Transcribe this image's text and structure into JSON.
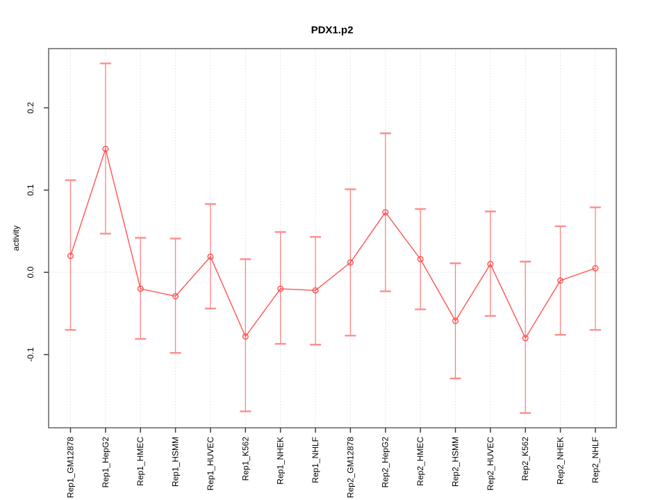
{
  "figure": {
    "background": "#ffffff"
  },
  "chart_data": {
    "type": "line",
    "title": "PDX1.p2",
    "xlabel": "",
    "ylabel": "activity",
    "legend_position": "none",
    "grid": "dotted vertical gridline at each category; dotted horizontal line at y=0",
    "categories": [
      "Rep1_GM12878",
      "Rep1_HepG2",
      "Rep1_HMEC",
      "Rep1_HSMM",
      "Rep1_HUVEC",
      "Rep1_K562",
      "Rep1_NHEK",
      "Rep1_NHLF",
      "Rep2_GM12878",
      "Rep2_HepG2",
      "Rep2_HMEC",
      "Rep2_HSMM",
      "Rep2_HUVEC",
      "Rep2_K562",
      "Rep2_NHEK",
      "Rep2_NHLF"
    ],
    "series": [
      {
        "name": "activity",
        "marker": "open-circle",
        "values": [
          0.02,
          0.15,
          -0.02,
          -0.029,
          0.019,
          -0.078,
          -0.02,
          -0.022,
          0.012,
          0.073,
          0.016,
          -0.059,
          0.01,
          -0.08,
          -0.01,
          0.005
        ],
        "error_low": [
          -0.07,
          0.047,
          -0.081,
          -0.098,
          -0.044,
          -0.169,
          -0.087,
          -0.088,
          -0.077,
          -0.023,
          -0.045,
          -0.129,
          -0.053,
          -0.171,
          -0.076,
          -0.07
        ],
        "error_high": [
          0.112,
          0.254,
          0.042,
          0.041,
          0.083,
          0.016,
          0.049,
          0.043,
          0.101,
          0.169,
          0.077,
          0.011,
          0.074,
          0.013,
          0.056,
          0.079
        ]
      }
    ],
    "yticks": {
      "values": [
        -0.1,
        0.0,
        0.1,
        0.2
      ],
      "labels": [
        "-0.1",
        "0.0",
        "0.1",
        "0.2"
      ]
    },
    "ylim": [
      -0.189,
      0.272
    ],
    "colors": {
      "line": "#ff5252",
      "point": "#ff4d4d",
      "errorbar_stem": "#ff8080",
      "errorbar_cap": "#ff8c8c",
      "grid": "#dcdcdc",
      "box": "#898989",
      "tick": "#3f3f3f",
      "text": "#000000"
    }
  }
}
